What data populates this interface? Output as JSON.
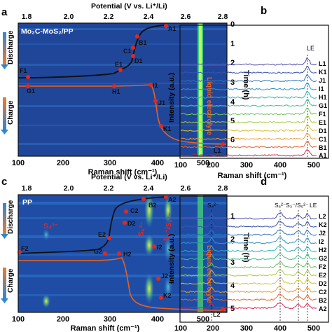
{
  "figure": {
    "panels": [
      {
        "id": "a",
        "letter": "a",
        "top_axis_title": "Potential (V vs. Li⁺/Li)",
        "top_ticks": [
          "1.8",
          "2.0",
          "2.2",
          "2.4",
          "2.6",
          "2.8"
        ],
        "bottom_axis_title": "Raman shift (cm⁻¹)",
        "bottom_ticks": [
          "100",
          "200",
          "300",
          "400",
          "500"
        ],
        "right_axis_title": "Time (h)",
        "right_ticks": [
          "0",
          "1",
          "2",
          "3",
          "4",
          "5",
          "6"
        ],
        "sample_label": "Mo₂C-MoS₂/PP",
        "discharge_label": "Discharge",
        "charge_label": "Charge",
        "electrolyte_label": "Liquid electrolyte",
        "points": [
          "A1",
          "B1",
          "C1",
          "D1",
          "E1",
          "F1",
          "G1",
          "H1",
          "I1",
          "J1",
          "K1",
          "L1"
        ],
        "colors": {
          "heatmap_bg": "#1d3a8f",
          "curve": "#111111",
          "charge_curve": "#e8621f",
          "marker": "#e8261a",
          "stripe": "#3fd07a"
        }
      },
      {
        "id": "b",
        "letter": "b",
        "xlabel": "Raman shift (cm⁻¹)",
        "ylabel": "Intensity (a.u.)",
        "x_ticks": [
          "100",
          "200",
          "300",
          "400",
          "500"
        ],
        "peak_label": "LE",
        "series": [
          "L1",
          "K1",
          "J1",
          "I1",
          "H1",
          "G1",
          "F1",
          "E1",
          "D1",
          "C1",
          "B1",
          "A1"
        ]
      },
      {
        "id": "c",
        "letter": "c",
        "top_axis_title": "Potential (V vs. Li⁺/Li)",
        "top_ticks": [
          "1.8",
          "2.0",
          "2.2",
          "2.4",
          "2.6",
          "2.8"
        ],
        "bottom_axis_title": "Raman shift (cm⁻¹)",
        "bottom_ticks": [
          "100",
          "200",
          "300",
          "400",
          "500"
        ],
        "right_axis_title": "Time (h)",
        "right_ticks": [
          "1",
          "2",
          "3",
          "4",
          "5"
        ],
        "sample_label": "PP",
        "discharge_label": "Discharge",
        "charge_label": "Charge",
        "electrolyte_label": "Liquid electrolyte",
        "species": [
          "S₄²⁻",
          "S₆²⁻",
          "S₃⁻/S₅²⁻"
        ],
        "points": [
          "A2",
          "B2",
          "C2",
          "D2",
          "E2",
          "F2",
          "G2",
          "H2",
          "I2",
          "J2",
          "K2",
          "L2"
        ]
      },
      {
        "id": "d",
        "letter": "d",
        "xlabel": "Raman shift (cm⁻¹)",
        "ylabel": "Intensity (a.u.)",
        "x_ticks": [
          "100",
          "200",
          "300",
          "400",
          "500"
        ],
        "peak_labels": [
          "S₄²⁻",
          "S₆²⁻",
          "S₃⁻/S₅²⁻",
          "LE"
        ],
        "series": [
          "L2",
          "K2",
          "J2",
          "I2",
          "H2",
          "G2",
          "F2",
          "E2",
          "D2",
          "C2",
          "B2",
          "A2"
        ]
      }
    ],
    "colors": {
      "spectra": [
        "#4d4fa6",
        "#3a54b0",
        "#3074c0",
        "#2f93c7",
        "#2fb1b8",
        "#3dbf8c",
        "#6dc45d",
        "#a7c93a",
        "#d7c233",
        "#ee9a2e",
        "#e8622e",
        "#d9254f"
      ]
    }
  }
}
